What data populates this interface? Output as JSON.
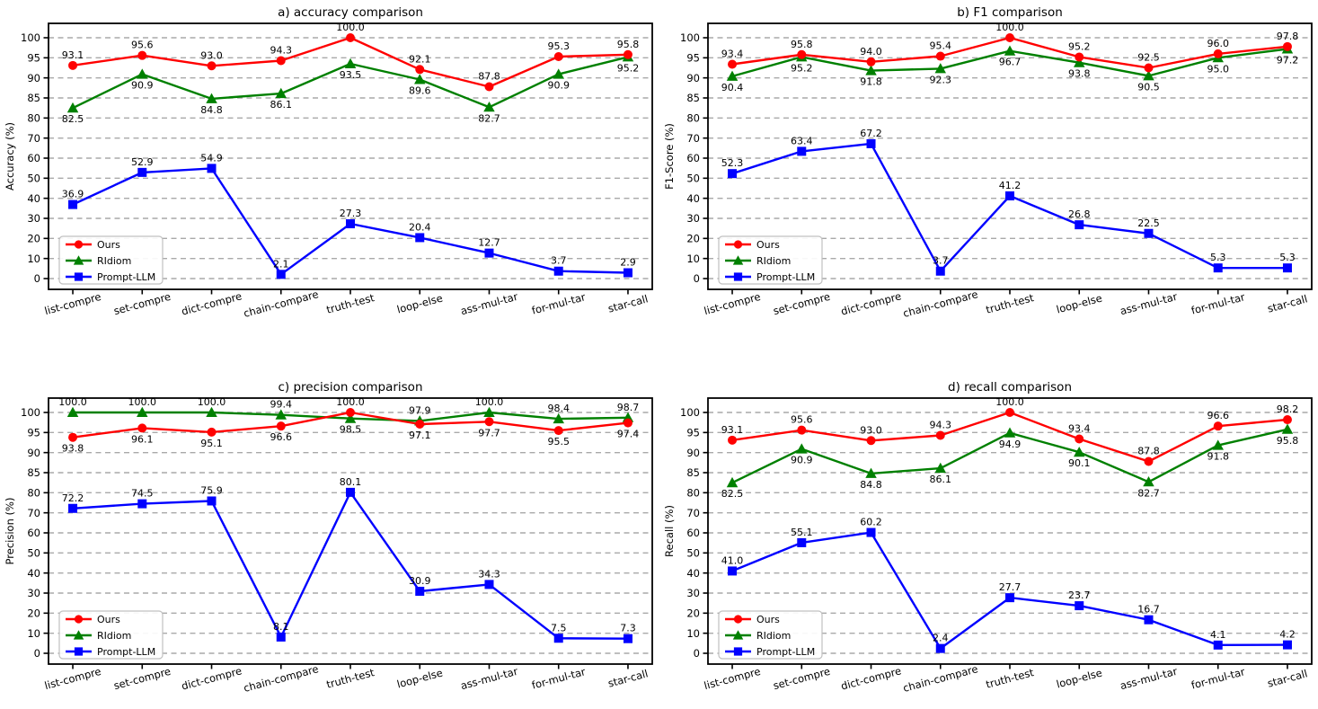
{
  "figure": {
    "background": "#ffffff",
    "grid_color": "#a9a9a9",
    "axis_color": "#000000",
    "text_color": "#000000",
    "legend_border_color": "#c0c0c0",
    "legend_fill": "#ffffff"
  },
  "legend": {
    "position": "lower-left",
    "entries": [
      "Ours",
      "RIdiom",
      "Prompt-LLM"
    ]
  },
  "chart_data": [
    {
      "id": "a",
      "type": "line",
      "title": "a) accuracy comparison",
      "xlabel": "",
      "ylabel": "Accuracy (%)",
      "categories": [
        "list-compre",
        "set-compre",
        "dict-compre",
        "chain-compare",
        "truth-test",
        "loop-else",
        "ass-mul-tar",
        "for-mul-tar",
        "star-call"
      ],
      "yticks": [
        0,
        10,
        20,
        30,
        40,
        50,
        60,
        70,
        80,
        85,
        90,
        95,
        100
      ],
      "y_scale": "ticks-equidistant",
      "ylim": [
        0,
        100
      ],
      "grid": true,
      "x_tick_rotation": 15,
      "legend_position": "lower-left",
      "series": [
        {
          "name": "Ours",
          "color": "#ff0000",
          "marker": "circle",
          "label_side": "above",
          "values": [
            93.1,
            95.6,
            93.0,
            94.3,
            100.0,
            92.1,
            87.8,
            95.3,
            95.8
          ]
        },
        {
          "name": "RIdiom",
          "color": "#008000",
          "marker": "triangle",
          "label_side": "below",
          "values": [
            82.5,
            90.9,
            84.8,
            86.1,
            93.5,
            89.6,
            82.7,
            90.9,
            95.2
          ]
        },
        {
          "name": "Prompt-LLM",
          "color": "#0000ff",
          "marker": "square",
          "label_side": "above",
          "values": [
            36.9,
            52.9,
            54.9,
            2.1,
            27.3,
            20.4,
            12.7,
            3.7,
            2.9
          ]
        }
      ]
    },
    {
      "id": "b",
      "type": "line",
      "title": "b) F1 comparison",
      "xlabel": "",
      "ylabel": "F1-Score (%)",
      "categories": [
        "list-compre",
        "set-compre",
        "dict-compre",
        "chain-compare",
        "truth-test",
        "loop-else",
        "ass-mul-tar",
        "for-mul-tar",
        "star-call"
      ],
      "yticks": [
        0,
        10,
        20,
        30,
        40,
        50,
        60,
        70,
        80,
        85,
        90,
        95,
        100
      ],
      "y_scale": "ticks-equidistant",
      "ylim": [
        0,
        100
      ],
      "grid": true,
      "x_tick_rotation": 15,
      "legend_position": "lower-left",
      "series": [
        {
          "name": "Ours",
          "color": "#ff0000",
          "marker": "circle",
          "label_side": "above",
          "values": [
            93.4,
            95.8,
            94.0,
            95.4,
            100.0,
            95.2,
            92.5,
            96.0,
            97.8
          ]
        },
        {
          "name": "RIdiom",
          "color": "#008000",
          "marker": "triangle",
          "label_side": "below",
          "values": [
            90.4,
            95.2,
            91.8,
            92.3,
            96.7,
            93.8,
            90.5,
            95.0,
            97.2
          ]
        },
        {
          "name": "Prompt-LLM",
          "color": "#0000ff",
          "marker": "square",
          "label_side": "above",
          "values": [
            52.3,
            63.4,
            67.2,
            3.7,
            41.2,
            26.8,
            22.5,
            5.3,
            5.3
          ]
        }
      ]
    },
    {
      "id": "c",
      "type": "line",
      "title": "c) precision comparison",
      "xlabel": "",
      "ylabel": "Precision (%)",
      "categories": [
        "list-compre",
        "set-compre",
        "dict-compre",
        "chain-compare",
        "truth-test",
        "loop-else",
        "ass-mul-tar",
        "for-mul-tar",
        "star-call"
      ],
      "yticks": [
        0,
        10,
        20,
        30,
        40,
        50,
        60,
        70,
        80,
        85,
        90,
        95,
        100
      ],
      "y_scale": "ticks-equidistant",
      "ylim": [
        0,
        100
      ],
      "grid": true,
      "x_tick_rotation": 15,
      "legend_position": "lower-left",
      "series": [
        {
          "name": "Ours",
          "color": "#ff0000",
          "marker": "circle",
          "label_side": [
            "below",
            "below",
            "below",
            "below",
            "above",
            "below",
            "below",
            "below",
            "below"
          ],
          "values": [
            93.8,
            96.1,
            95.1,
            96.6,
            100.0,
            97.1,
            97.7,
            95.5,
            97.4
          ]
        },
        {
          "name": "RIdiom",
          "color": "#008000",
          "marker": "triangle",
          "label_side": [
            "above",
            "above",
            "above",
            "above",
            "below",
            "above",
            "above",
            "above",
            "above"
          ],
          "values": [
            100.0,
            100.0,
            100.0,
            99.4,
            98.5,
            97.9,
            100.0,
            98.4,
            98.7
          ]
        },
        {
          "name": "Prompt-LLM",
          "color": "#0000ff",
          "marker": "square",
          "label_side": "above",
          "values": [
            72.2,
            74.5,
            75.9,
            8.1,
            80.1,
            30.9,
            34.3,
            7.5,
            7.3
          ]
        }
      ]
    },
    {
      "id": "d",
      "type": "line",
      "title": "d) recall comparison",
      "xlabel": "",
      "ylabel": "Recall (%)",
      "categories": [
        "list-compre",
        "set-compre",
        "dict-compre",
        "chain-compare",
        "truth-test",
        "loop-else",
        "ass-mul-tar",
        "for-mul-tar",
        "star-call"
      ],
      "yticks": [
        0,
        10,
        20,
        30,
        40,
        50,
        60,
        70,
        80,
        85,
        90,
        95,
        100
      ],
      "y_scale": "ticks-equidistant",
      "ylim": [
        0,
        100
      ],
      "grid": true,
      "x_tick_rotation": 15,
      "legend_position": "lower-left",
      "series": [
        {
          "name": "Ours",
          "color": "#ff0000",
          "marker": "circle",
          "label_side": "above",
          "values": [
            93.1,
            95.6,
            93.0,
            94.3,
            100.0,
            93.4,
            87.8,
            96.6,
            98.2
          ]
        },
        {
          "name": "RIdiom",
          "color": "#008000",
          "marker": "triangle",
          "label_side": "below",
          "values": [
            82.5,
            90.9,
            84.8,
            86.1,
            94.9,
            90.1,
            82.7,
            91.8,
            95.8
          ]
        },
        {
          "name": "Prompt-LLM",
          "color": "#0000ff",
          "marker": "square",
          "label_side": "above",
          "values": [
            41.0,
            55.1,
            60.2,
            2.4,
            27.7,
            23.7,
            16.7,
            4.1,
            4.2
          ]
        }
      ]
    }
  ]
}
